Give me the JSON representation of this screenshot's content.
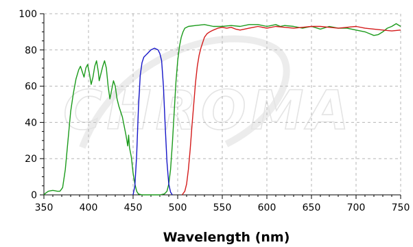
{
  "chart_data": {
    "type": "line",
    "title": "",
    "xlabel": "Wavelength (nm)",
    "ylabel": "",
    "xlim": [
      350,
      750
    ],
    "ylim": [
      0,
      100
    ],
    "xticks": [
      350,
      400,
      450,
      500,
      550,
      600,
      650,
      700,
      750
    ],
    "yticks": [
      0,
      20,
      40,
      60,
      80,
      100
    ],
    "grid": true,
    "legend": "none",
    "watermark_text": "CHROMA",
    "series": [
      {
        "color": "#1a9a1a",
        "points": [
          [
            350,
            0
          ],
          [
            352,
            1
          ],
          [
            355,
            2
          ],
          [
            360,
            2.5
          ],
          [
            365,
            2
          ],
          [
            368,
            2
          ],
          [
            371,
            4
          ],
          [
            374,
            14
          ],
          [
            377,
            30
          ],
          [
            380,
            46
          ],
          [
            383,
            56
          ],
          [
            386,
            64
          ],
          [
            389,
            69
          ],
          [
            391,
            71
          ],
          [
            393,
            68
          ],
          [
            395,
            65
          ],
          [
            397,
            70
          ],
          [
            399,
            72
          ],
          [
            401,
            67
          ],
          [
            403,
            61
          ],
          [
            405,
            65
          ],
          [
            407,
            71
          ],
          [
            409,
            74
          ],
          [
            411,
            68
          ],
          [
            412,
            63
          ],
          [
            414,
            67
          ],
          [
            416,
            71
          ],
          [
            418,
            74
          ],
          [
            420,
            70
          ],
          [
            422,
            60
          ],
          [
            424,
            53
          ],
          [
            426,
            58
          ],
          [
            428,
            63
          ],
          [
            430,
            60
          ],
          [
            432,
            53
          ],
          [
            434,
            49
          ],
          [
            436,
            46
          ],
          [
            438,
            43
          ],
          [
            440,
            38
          ],
          [
            442,
            33
          ],
          [
            444,
            27
          ],
          [
            445,
            33
          ],
          [
            446,
            26
          ],
          [
            448,
            21
          ],
          [
            450,
            12
          ],
          [
            452,
            6
          ],
          [
            454,
            2
          ],
          [
            456,
            0.5
          ],
          [
            460,
            0
          ],
          [
            470,
            0
          ],
          [
            480,
            0
          ],
          [
            485,
            0.5
          ],
          [
            488,
            2
          ],
          [
            490,
            6
          ],
          [
            492,
            14
          ],
          [
            494,
            28
          ],
          [
            496,
            45
          ],
          [
            498,
            62
          ],
          [
            500,
            74
          ],
          [
            502,
            82
          ],
          [
            504,
            87
          ],
          [
            506,
            90
          ],
          [
            508,
            92
          ],
          [
            512,
            93
          ],
          [
            520,
            93.5
          ],
          [
            530,
            94
          ],
          [
            540,
            93
          ],
          [
            550,
            93
          ],
          [
            560,
            93.5
          ],
          [
            570,
            93
          ],
          [
            580,
            94
          ],
          [
            590,
            94
          ],
          [
            600,
            93
          ],
          [
            605,
            93.5
          ],
          [
            610,
            94
          ],
          [
            615,
            93
          ],
          [
            620,
            93.5
          ],
          [
            630,
            93
          ],
          [
            640,
            92
          ],
          [
            650,
            93
          ],
          [
            660,
            91.5
          ],
          [
            670,
            93
          ],
          [
            680,
            92
          ],
          [
            690,
            92
          ],
          [
            700,
            91
          ],
          [
            710,
            90
          ],
          [
            715,
            89
          ],
          [
            720,
            88
          ],
          [
            725,
            88.5
          ],
          [
            730,
            90
          ],
          [
            735,
            92
          ],
          [
            740,
            93
          ],
          [
            745,
            94.5
          ],
          [
            750,
            93
          ]
        ]
      },
      {
        "color": "#1515c8",
        "points": [
          [
            450,
            0
          ],
          [
            452,
            5
          ],
          [
            454,
            22
          ],
          [
            456,
            48
          ],
          [
            458,
            66
          ],
          [
            460,
            73
          ],
          [
            462,
            76
          ],
          [
            464,
            77
          ],
          [
            466,
            78
          ],
          [
            468,
            79
          ],
          [
            470,
            80
          ],
          [
            472,
            80.5
          ],
          [
            474,
            81
          ],
          [
            476,
            80.5
          ],
          [
            478,
            80
          ],
          [
            480,
            78
          ],
          [
            482,
            74
          ],
          [
            484,
            60
          ],
          [
            486,
            38
          ],
          [
            488,
            18
          ],
          [
            490,
            6
          ],
          [
            492,
            1.5
          ],
          [
            494,
            0
          ]
        ]
      },
      {
        "color": "#d41a1a",
        "points": [
          [
            505,
            0
          ],
          [
            508,
            2
          ],
          [
            510,
            6
          ],
          [
            512,
            14
          ],
          [
            514,
            25
          ],
          [
            516,
            38
          ],
          [
            518,
            50
          ],
          [
            520,
            62
          ],
          [
            522,
            71
          ],
          [
            524,
            77
          ],
          [
            526,
            81
          ],
          [
            528,
            84
          ],
          [
            530,
            87
          ],
          [
            533,
            89
          ],
          [
            536,
            90
          ],
          [
            540,
            91
          ],
          [
            545,
            92
          ],
          [
            550,
            92.5
          ],
          [
            555,
            92
          ],
          [
            560,
            92.5
          ],
          [
            565,
            91.5
          ],
          [
            570,
            91
          ],
          [
            575,
            91.5
          ],
          [
            580,
            92
          ],
          [
            585,
            92.5
          ],
          [
            590,
            93
          ],
          [
            600,
            92
          ],
          [
            610,
            93
          ],
          [
            620,
            92.5
          ],
          [
            630,
            92
          ],
          [
            640,
            92.5
          ],
          [
            650,
            93
          ],
          [
            660,
            93
          ],
          [
            670,
            92.5
          ],
          [
            680,
            92
          ],
          [
            690,
            92.5
          ],
          [
            700,
            93
          ],
          [
            710,
            92
          ],
          [
            720,
            91.5
          ],
          [
            730,
            91
          ],
          [
            740,
            90.5
          ],
          [
            750,
            91
          ]
        ]
      }
    ]
  }
}
